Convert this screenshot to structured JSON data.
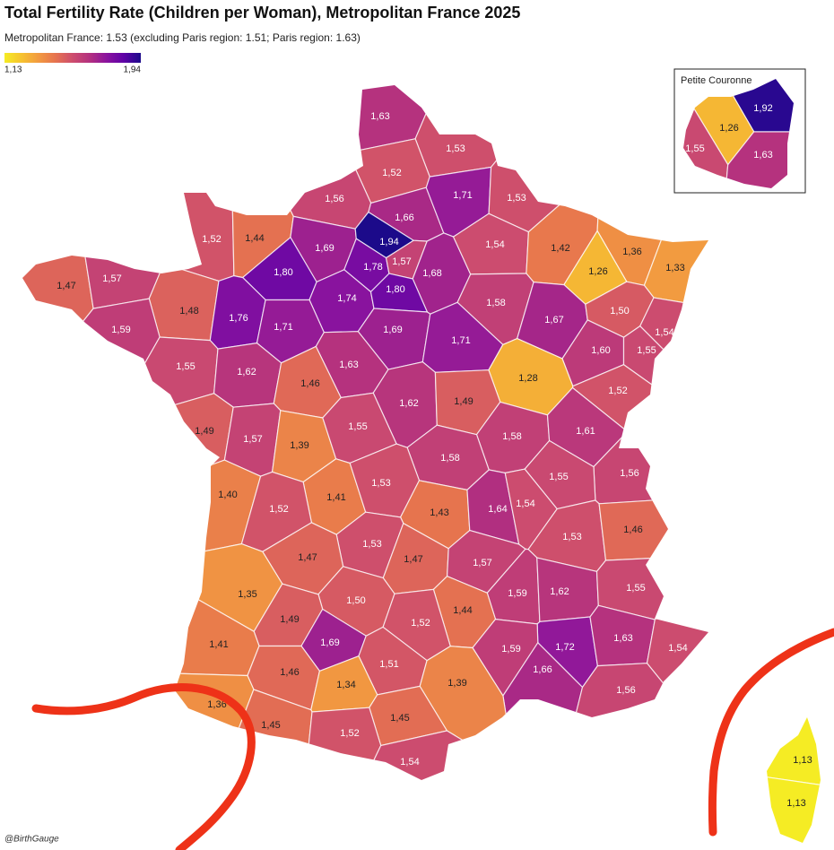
{
  "chart_data": {
    "type": "choropleth",
    "title": "Total Fertility Rate (Children per Woman), Metropolitan France 2025",
    "subtitle": "Metropolitan France: 1.53 (excluding Paris region: 1.51; Paris region: 1.63)",
    "clim": [
      1.13,
      1.94
    ],
    "colorbar_ticks": [
      {
        "value": 1.13,
        "label": "1,13"
      },
      {
        "value": 1.94,
        "label": "1,94"
      }
    ],
    "colorscale": [
      "#f5ec24",
      "#f6c22f",
      "#f29a40",
      "#e6734f",
      "#cd4d6e",
      "#b3307f",
      "#8a139e",
      "#5f02a6",
      "#1c0a8a"
    ],
    "values": [
      1.63,
      1.53,
      1.52,
      1.56,
      1.66,
      1.71,
      1.53,
      1.52,
      1.44,
      1.69,
      1.94,
      1.78,
      1.57,
      1.68,
      1.54,
      1.42,
      1.36,
      1.26,
      1.33,
      1.47,
      1.57,
      1.8,
      1.74,
      1.8,
      1.48,
      1.76,
      1.71,
      1.59,
      1.58,
      1.67,
      1.5,
      1.54,
      1.69,
      1.71,
      1.6,
      1.55,
      1.55,
      1.62,
      1.63,
      1.28,
      1.46,
      1.52,
      1.62,
      1.49,
      1.49,
      1.57,
      1.39,
      1.55,
      1.58,
      1.61,
      1.58,
      1.56,
      1.4,
      1.41,
      1.53,
      1.55,
      1.52,
      1.43,
      1.64,
      1.54,
      1.53,
      1.46,
      1.53,
      1.47,
      1.47,
      1.57,
      1.35,
      1.5,
      1.59,
      1.62,
      1.55,
      1.44,
      1.49,
      1.52,
      1.41,
      1.69,
      1.72,
      1.63,
      1.54,
      1.59,
      1.51,
      1.46,
      1.66,
      1.34,
      1.39,
      1.56,
      1.36,
      1.45,
      1.45,
      1.52,
      1.54,
      1.13,
      1.13
    ],
    "value_labels": [
      "1,63",
      "1,53",
      "1,52",
      "1,56",
      "1,66",
      "1,71",
      "1,53",
      "1,52",
      "1,44",
      "1,69",
      "1,94",
      "1,78",
      "1,57",
      "1,68",
      "1,54",
      "1,42",
      "1,36",
      "1,26",
      "1,33",
      "1,47",
      "1,57",
      "1,80",
      "1,74",
      "1,80",
      "1,48",
      "1,76",
      "1,71",
      "1,59",
      "1,58",
      "1,67",
      "1,50",
      "1,54",
      "1,69",
      "1,71",
      "1,60",
      "1,55",
      "1,55",
      "1,62",
      "1,63",
      "1,28",
      "1,46",
      "1,52",
      "1,62",
      "1,49",
      "1,49",
      "1,57",
      "1,39",
      "1,55",
      "1,58",
      "1,61",
      "1,58",
      "1,56",
      "1,40",
      "1,41",
      "1,53",
      "1,55",
      "1,52",
      "1,43",
      "1,64",
      "1,54",
      "1,53",
      "1,46",
      "1,53",
      "1,47",
      "1,47",
      "1,57",
      "1,35",
      "1,50",
      "1,59",
      "1,62",
      "1,55",
      "1,44",
      "1,49",
      "1,52",
      "1,41",
      "1,69",
      "1,72",
      "1,63",
      "1,54",
      "1,59",
      "1,51",
      "1,46",
      "1,66",
      "1,34",
      "1,39",
      "1,56",
      "1,36",
      "1,45",
      "1,45",
      "1,52",
      "1,54",
      "1,13",
      "1,13"
    ],
    "inset": {
      "title": "Petite Couronne",
      "values": [
        1.92,
        1.26,
        1.55,
        1.63
      ],
      "value_labels": [
        "1,92",
        "1,26",
        "1,55",
        "1,63"
      ]
    },
    "credit": "@BirthGauge"
  }
}
